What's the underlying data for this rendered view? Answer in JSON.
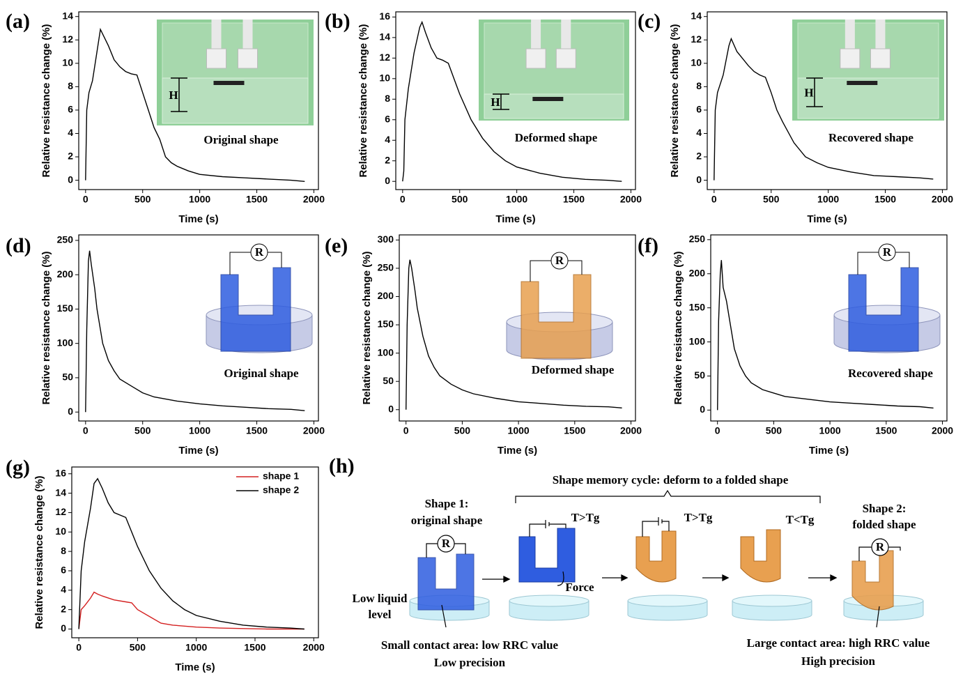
{
  "chart_data": [
    {
      "type": "line",
      "panel": "(a)",
      "x_label": "Time (s)",
      "y_label": "Relative resistance change (%)",
      "x": [
        0,
        10,
        30,
        60,
        100,
        130,
        160,
        200,
        250,
        300,
        350,
        400,
        450,
        500,
        550,
        600,
        650,
        700,
        750,
        800,
        900,
        1000,
        1200,
        1400,
        1600,
        1800,
        1920
      ],
      "values": [
        0,
        6,
        7.5,
        8.5,
        11,
        12.9,
        12.3,
        11.5,
        10.3,
        9.7,
        9.3,
        9.1,
        9.0,
        7.5,
        6,
        4.5,
        3.5,
        2.0,
        1.5,
        1.2,
        0.8,
        0.5,
        0.3,
        0.2,
        0.1,
        0,
        -0.1
      ],
      "color": "#000000",
      "xlim": [
        -60,
        2040
      ],
      "ylim": [
        -0.8,
        14.4
      ],
      "xticks": [
        0,
        500,
        1000,
        1500,
        2000
      ],
      "yticks": [
        0,
        2,
        4,
        6,
        8,
        10,
        12,
        14
      ],
      "annotations": [
        "H",
        "Original shape"
      ]
    },
    {
      "type": "line",
      "panel": "(b)",
      "x_label": "Time (s)",
      "y_label": "Relative resistance change (%)",
      "x": [
        0,
        10,
        20,
        50,
        100,
        150,
        170,
        200,
        250,
        300,
        350,
        400,
        450,
        500,
        600,
        700,
        800,
        900,
        1000,
        1200,
        1400,
        1600,
        1800,
        1920
      ],
      "values": [
        0,
        1,
        6,
        9,
        12.5,
        15,
        15.5,
        14.5,
        13,
        12,
        11.8,
        11.5,
        10,
        8.5,
        6,
        4.2,
        2.9,
        2,
        1.4,
        0.8,
        0.4,
        0.2,
        0.1,
        0
      ],
      "color": "#000000",
      "xlim": [
        -60,
        2040
      ],
      "ylim": [
        -0.8,
        16.5
      ],
      "xticks": [
        0,
        500,
        1000,
        1500,
        2000
      ],
      "yticks": [
        0,
        2,
        4,
        6,
        8,
        10,
        12,
        14,
        16
      ],
      "annotations": [
        "H",
        "Deformed shape"
      ]
    },
    {
      "type": "line",
      "panel": "(c)",
      "x_label": "Time (s)",
      "y_label": "Relative resistance change (%)",
      "x": [
        0,
        10,
        30,
        80,
        130,
        150,
        200,
        250,
        300,
        350,
        400,
        450,
        500,
        550,
        600,
        700,
        800,
        900,
        1000,
        1200,
        1400,
        1600,
        1800,
        1920
      ],
      "values": [
        0,
        6,
        7.5,
        9,
        11.5,
        12.1,
        11,
        10.4,
        9.8,
        9.3,
        9.0,
        8.8,
        7.5,
        6,
        5,
        3.2,
        2.0,
        1.5,
        1.1,
        0.7,
        0.4,
        0.3,
        0.2,
        0.1
      ],
      "color": "#000000",
      "xlim": [
        -60,
        2040
      ],
      "ylim": [
        -0.8,
        14.4
      ],
      "xticks": [
        0,
        500,
        1000,
        1500,
        2000
      ],
      "yticks": [
        0,
        2,
        4,
        6,
        8,
        10,
        12,
        14
      ],
      "annotations": [
        "H",
        "Recovered shape"
      ]
    },
    {
      "type": "line",
      "panel": "(d)",
      "x_label": "Time (s)",
      "y_label": "Relative resistance change (%)",
      "x": [
        0,
        10,
        25,
        35,
        50,
        80,
        100,
        150,
        200,
        250,
        300,
        400,
        500,
        600,
        800,
        1000,
        1200,
        1400,
        1600,
        1800,
        1920
      ],
      "values": [
        0,
        120,
        220,
        235,
        215,
        180,
        150,
        100,
        75,
        60,
        48,
        38,
        28,
        22,
        16,
        12,
        9,
        7,
        5,
        4,
        2
      ],
      "color": "#000000",
      "xlim": [
        -60,
        2040
      ],
      "ylim": [
        -13,
        258
      ],
      "xticks": [
        0,
        500,
        1000,
        1500,
        2000
      ],
      "yticks": [
        0,
        50,
        100,
        150,
        200,
        250
      ],
      "annotations": [
        "R",
        "Original shape"
      ]
    },
    {
      "type": "line",
      "panel": "(e)",
      "x_label": "Time (s)",
      "y_label": "Relative resistance change (%)",
      "x": [
        0,
        10,
        25,
        35,
        50,
        80,
        100,
        150,
        200,
        250,
        300,
        400,
        500,
        600,
        800,
        1000,
        1200,
        1400,
        1600,
        1800,
        1920
      ],
      "values": [
        0,
        150,
        250,
        265,
        250,
        210,
        180,
        130,
        95,
        75,
        60,
        45,
        35,
        28,
        20,
        14,
        11,
        8,
        6,
        5,
        3
      ],
      "color": "#000000",
      "xlim": [
        -60,
        2040
      ],
      "ylim": [
        -20,
        309
      ],
      "xticks": [
        0,
        500,
        1000,
        1500,
        2000
      ],
      "yticks": [
        0,
        50,
        100,
        150,
        200,
        250,
        300
      ],
      "annotations": [
        "R",
        "Deformed shape"
      ]
    },
    {
      "type": "line",
      "panel": "(f)",
      "x_label": "Time (s)",
      "y_label": "Relative resistance change (%)",
      "x": [
        0,
        10,
        25,
        35,
        50,
        80,
        100,
        150,
        200,
        250,
        300,
        400,
        500,
        600,
        800,
        1000,
        1200,
        1400,
        1600,
        1800,
        1920
      ],
      "values": [
        0,
        130,
        200,
        220,
        180,
        160,
        140,
        90,
        65,
        50,
        40,
        30,
        25,
        20,
        16,
        12,
        10,
        8,
        6,
        5,
        3
      ],
      "color": "#000000",
      "xlim": [
        -60,
        2040
      ],
      "ylim": [
        -16,
        257
      ],
      "xticks": [
        0,
        500,
        1000,
        1500,
        2000
      ],
      "yticks": [
        0,
        50,
        100,
        150,
        200,
        250
      ],
      "annotations": [
        "R",
        "Recovered shape"
      ]
    },
    {
      "type": "line",
      "panel": "(g)",
      "x_label": "Time (s)",
      "y_label": "Relative resistance change (%)",
      "x": [
        0,
        20,
        50,
        100,
        130,
        160,
        200,
        250,
        300,
        400,
        450,
        500,
        600,
        700,
        800,
        900,
        1000,
        1200,
        1400,
        1600,
        1800,
        1920
      ],
      "series": [
        {
          "name": "shape 1",
          "color": "#d42020",
          "values": [
            0,
            2,
            2.4,
            3.2,
            3.8,
            3.6,
            3.4,
            3.2,
            3.0,
            2.8,
            2.7,
            2.0,
            1.3,
            0.6,
            0.4,
            0.3,
            0.2,
            0.1,
            0.05,
            0,
            0,
            0
          ]
        },
        {
          "name": "shape 2",
          "color": "#000000",
          "values": [
            0,
            6,
            9,
            12.5,
            15,
            15.5,
            14.5,
            13,
            12,
            11.5,
            10,
            8.5,
            6,
            4.2,
            2.9,
            2,
            1.4,
            0.8,
            0.4,
            0.2,
            0.1,
            0
          ]
        }
      ],
      "xlim": [
        -60,
        2040
      ],
      "ylim": [
        -0.9,
        16.7
      ],
      "xticks": [
        0,
        500,
        1000,
        1500,
        2000
      ],
      "yticks": [
        0,
        2,
        4,
        6,
        8,
        10,
        12,
        14,
        16
      ],
      "legend": "upper right"
    }
  ],
  "diagram": {
    "panel": "(h)",
    "title": "Shape memory cycle: deform to a folded shape",
    "shape1": [
      "Shape 1:",
      "original shape"
    ],
    "shape2": [
      "Shape 2:",
      "folded shape"
    ],
    "conditions": [
      "T>Tg",
      "T>Tg",
      "T<Tg"
    ],
    "resistor": "R",
    "force": "Force",
    "liquid": [
      "Low liquid",
      "level"
    ],
    "left_note": [
      "Small contact area: low RRC value",
      "Low precision"
    ],
    "right_note": [
      "Large contact area: high RRC value",
      "High precision"
    ]
  }
}
